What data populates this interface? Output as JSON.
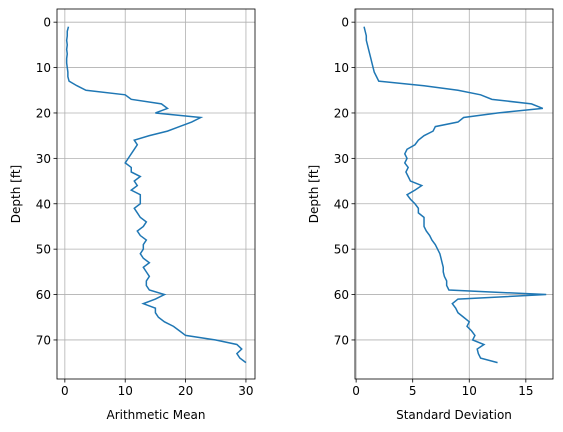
{
  "chart_data": [
    {
      "type": "line",
      "xlabel": "Arithmetic Mean",
      "ylabel": "Depth [ft]",
      "xlim": [
        -1.3,
        31.5
      ],
      "ylim": [
        78.6,
        -2.9
      ],
      "xticks": [
        0,
        10,
        20,
        30
      ],
      "yticks": [
        0,
        10,
        20,
        30,
        40,
        50,
        60,
        70
      ],
      "grid": true,
      "series": [
        {
          "color": "#1f77b4",
          "x": [
            0.6,
            0.4,
            0.4,
            0.3,
            0.4,
            0.3,
            0.4,
            0.3,
            0.3,
            0.4,
            0.5,
            0.5,
            0.7,
            2,
            3.5,
            10,
            11,
            16,
            17,
            15,
            22.5,
            21,
            19,
            17,
            14,
            11.5,
            12,
            11.5,
            11,
            10.5,
            10,
            11,
            11,
            12.5,
            11.5,
            12,
            11,
            12.5,
            12.5,
            12.5,
            11.5,
            12,
            12.5,
            13.5,
            13,
            12,
            12.5,
            13.5,
            13,
            13,
            12.5,
            13,
            14,
            13,
            13.5,
            14,
            13.5,
            13.5,
            14,
            16.5,
            15,
            13,
            15,
            15,
            15.5,
            16.5,
            18,
            19,
            20,
            25,
            28.5,
            29.3,
            28.5,
            29,
            30
          ],
          "y": [
            1,
            2,
            3,
            4,
            5,
            6,
            7,
            8,
            9,
            10,
            11,
            12,
            13,
            14,
            15,
            16,
            17,
            18,
            19,
            20,
            21,
            22,
            23,
            24,
            25,
            26,
            27,
            28,
            29,
            30,
            31,
            32,
            33,
            34,
            35,
            36,
            37,
            38,
            39,
            40,
            41,
            42,
            43,
            44,
            45,
            46,
            47,
            48,
            49,
            50,
            51,
            52,
            53,
            54,
            55,
            56,
            57,
            58,
            59,
            60,
            61,
            62,
            63,
            64,
            65,
            66,
            67,
            68,
            69,
            70,
            71,
            72,
            73,
            74,
            75
          ]
        }
      ]
    },
    {
      "type": "line",
      "xlabel": "Standard Deviation",
      "ylabel": "Depth [ft]",
      "xlim": [
        -0.1,
        17.4
      ],
      "ylim": [
        78.6,
        -2.9
      ],
      "xticks": [
        0,
        5,
        10,
        15
      ],
      "yticks": [
        0,
        10,
        20,
        30,
        40,
        50,
        60,
        70
      ],
      "grid": true,
      "series": [
        {
          "color": "#1f77b4",
          "x": [
            0.7,
            0.8,
            0.9,
            0.9,
            1,
            1.1,
            1.2,
            1.3,
            1.4,
            1.5,
            1.6,
            1.8,
            2,
            6,
            9,
            11,
            12,
            15.5,
            16.5,
            12.5,
            9.5,
            9,
            7,
            6.8,
            6,
            5.5,
            5.2,
            4.5,
            4.3,
            4.5,
            4.3,
            4.6,
            4.4,
            4.6,
            4.8,
            5.8,
            5.2,
            4.5,
            4.8,
            5.2,
            5.5,
            5.5,
            6,
            6,
            6,
            6.2,
            6.5,
            6.7,
            7,
            7.2,
            7.4,
            7.5,
            7.6,
            7.7,
            7.7,
            7.8,
            8,
            8,
            8.2,
            16.8,
            9,
            8.5,
            8.8,
            9,
            9.5,
            10,
            9.8,
            10.2,
            10.5,
            10.3,
            11.3,
            10.7,
            10.8,
            11,
            12.5
          ],
          "y": [
            1,
            2,
            3,
            4,
            5,
            6,
            7,
            8,
            9,
            10,
            11,
            12,
            13,
            14,
            15,
            16,
            17,
            18,
            19,
            20,
            21,
            22,
            23,
            24,
            25,
            26,
            27,
            28,
            29,
            30,
            31,
            32,
            33,
            34,
            35,
            36,
            37,
            38,
            39,
            40,
            41,
            42,
            43,
            44,
            45,
            46,
            47,
            48,
            49,
            50,
            51,
            52,
            53,
            54,
            55,
            56,
            57,
            58,
            59,
            60,
            61,
            62,
            63,
            64,
            65,
            66,
            67,
            68,
            69,
            70,
            71,
            72,
            73,
            74,
            75
          ]
        }
      ]
    }
  ]
}
